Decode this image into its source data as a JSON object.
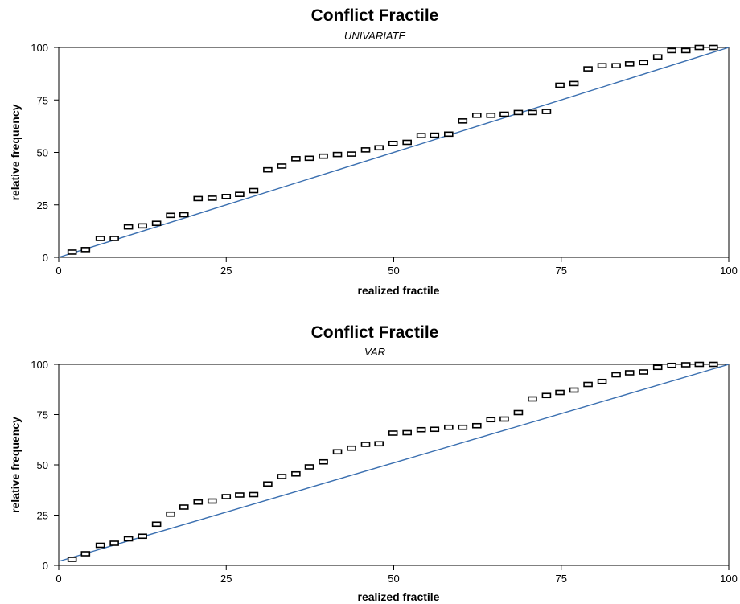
{
  "chart_data": [
    {
      "type": "scatter",
      "title": "Conflict Fractile",
      "subtitle": "UNIVARIATE",
      "xlabel": "realized fractile",
      "ylabel": "relative frequency",
      "xlim": [
        0,
        100
      ],
      "ylim": [
        0,
        100
      ],
      "xticks": [
        "0",
        "25",
        "50",
        "75",
        "100"
      ],
      "yticks": [
        "0",
        "25",
        "50",
        "75",
        "100"
      ],
      "grid": false,
      "reference_line": {
        "from": [
          0,
          0
        ],
        "to": [
          100,
          100
        ],
        "color": "#3a6fb0"
      },
      "marker": "open-rectangle",
      "series": [
        {
          "x": [
            2,
            4,
            6.2,
            8.3,
            10.4,
            12.5,
            14.6,
            16.7,
            18.7,
            20.8,
            22.9,
            25,
            27,
            29.1,
            31.2,
            33.3,
            35.4,
            37.4,
            39.5,
            41.6,
            43.7,
            45.8,
            47.8,
            49.9,
            52,
            54.1,
            56.1,
            58.2,
            60.3,
            62.4,
            64.5,
            66.5,
            68.6,
            70.7,
            72.8,
            74.8,
            76.9,
            79,
            81.1,
            83.2,
            85.2,
            87.3,
            89.4,
            91.5,
            93.6,
            95.6,
            97.7
          ],
          "y": [
            2.5,
            3.7,
            9,
            9,
            14.5,
            15,
            16.2,
            20,
            20.3,
            28,
            28.2,
            29,
            30,
            31.8,
            41.7,
            43.5,
            47,
            47.2,
            48.2,
            49,
            49.2,
            51.2,
            52.2,
            54.3,
            54.8,
            58,
            58.2,
            58.7,
            65,
            67.7,
            67.7,
            68.2,
            69,
            69,
            69.5,
            82,
            82.8,
            89.8,
            91.3,
            91.3,
            92.2,
            92.8,
            95.5,
            98.5,
            98.5,
            100,
            100
          ]
        }
      ]
    },
    {
      "type": "scatter",
      "title": "Conflict Fractile",
      "subtitle": "VAR",
      "xlabel": "realized fractile",
      "ylabel": "relative frequency",
      "xlim": [
        0,
        100
      ],
      "ylim": [
        0,
        100
      ],
      "xticks": [
        "0",
        "25",
        "50",
        "75",
        "100"
      ],
      "yticks": [
        "0",
        "25",
        "50",
        "75",
        "100"
      ],
      "grid": false,
      "reference_line": {
        "from": [
          0,
          2
        ],
        "to": [
          100,
          100
        ],
        "color": "#3a6fb0"
      },
      "marker": "open-rectangle",
      "series": [
        {
          "x": [
            2,
            4,
            6.2,
            8.3,
            10.4,
            12.5,
            14.6,
            16.7,
            18.7,
            20.8,
            22.9,
            25,
            27,
            29.1,
            31.2,
            33.3,
            35.4,
            37.4,
            39.5,
            41.6,
            43.7,
            45.8,
            47.8,
            49.9,
            52,
            54.1,
            56.1,
            58.2,
            60.3,
            62.4,
            64.5,
            66.5,
            68.6,
            70.7,
            72.8,
            74.8,
            76.9,
            79,
            81.1,
            83.2,
            85.2,
            87.3,
            89.4,
            91.5,
            93.6,
            95.6,
            97.7
          ],
          "y": [
            3,
            5.8,
            10,
            11,
            13.2,
            14.5,
            20.5,
            25.5,
            29,
            31.5,
            32,
            34.2,
            35,
            35.2,
            40.5,
            44.2,
            45.5,
            49,
            51.5,
            56.5,
            58.3,
            60.2,
            60.5,
            65.8,
            66,
            67.5,
            67.7,
            68.7,
            68.7,
            69.5,
            72.5,
            72.8,
            76,
            82.8,
            84.5,
            86,
            87.2,
            90,
            91.5,
            94.8,
            95.8,
            96.2,
            98.5,
            99.5,
            99.8,
            100,
            100
          ]
        }
      ]
    }
  ]
}
